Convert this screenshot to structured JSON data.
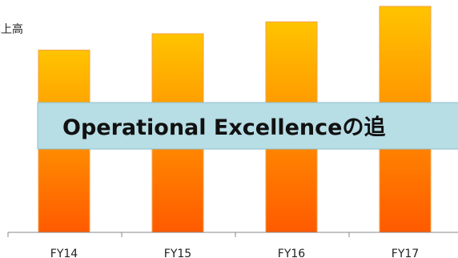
{
  "chart_data": {
    "type": "bar",
    "ylabel": "売上高",
    "categories": [
      "FY14",
      "FY15",
      "FY16",
      "FY17"
    ],
    "values": [
      200,
      218,
      231,
      248
    ],
    "ylim": [
      0,
      255
    ],
    "grid": false,
    "legend": "none",
    "annotation": "Operational Excellenceの追",
    "colors": {
      "bar_top": "#ffc400",
      "bar_bottom": "#ff5a00",
      "bar_edge": "#f2a24a",
      "banner_fill": "#b7dde5",
      "banner_border": "#8fbecb",
      "axis": "#888888"
    }
  }
}
